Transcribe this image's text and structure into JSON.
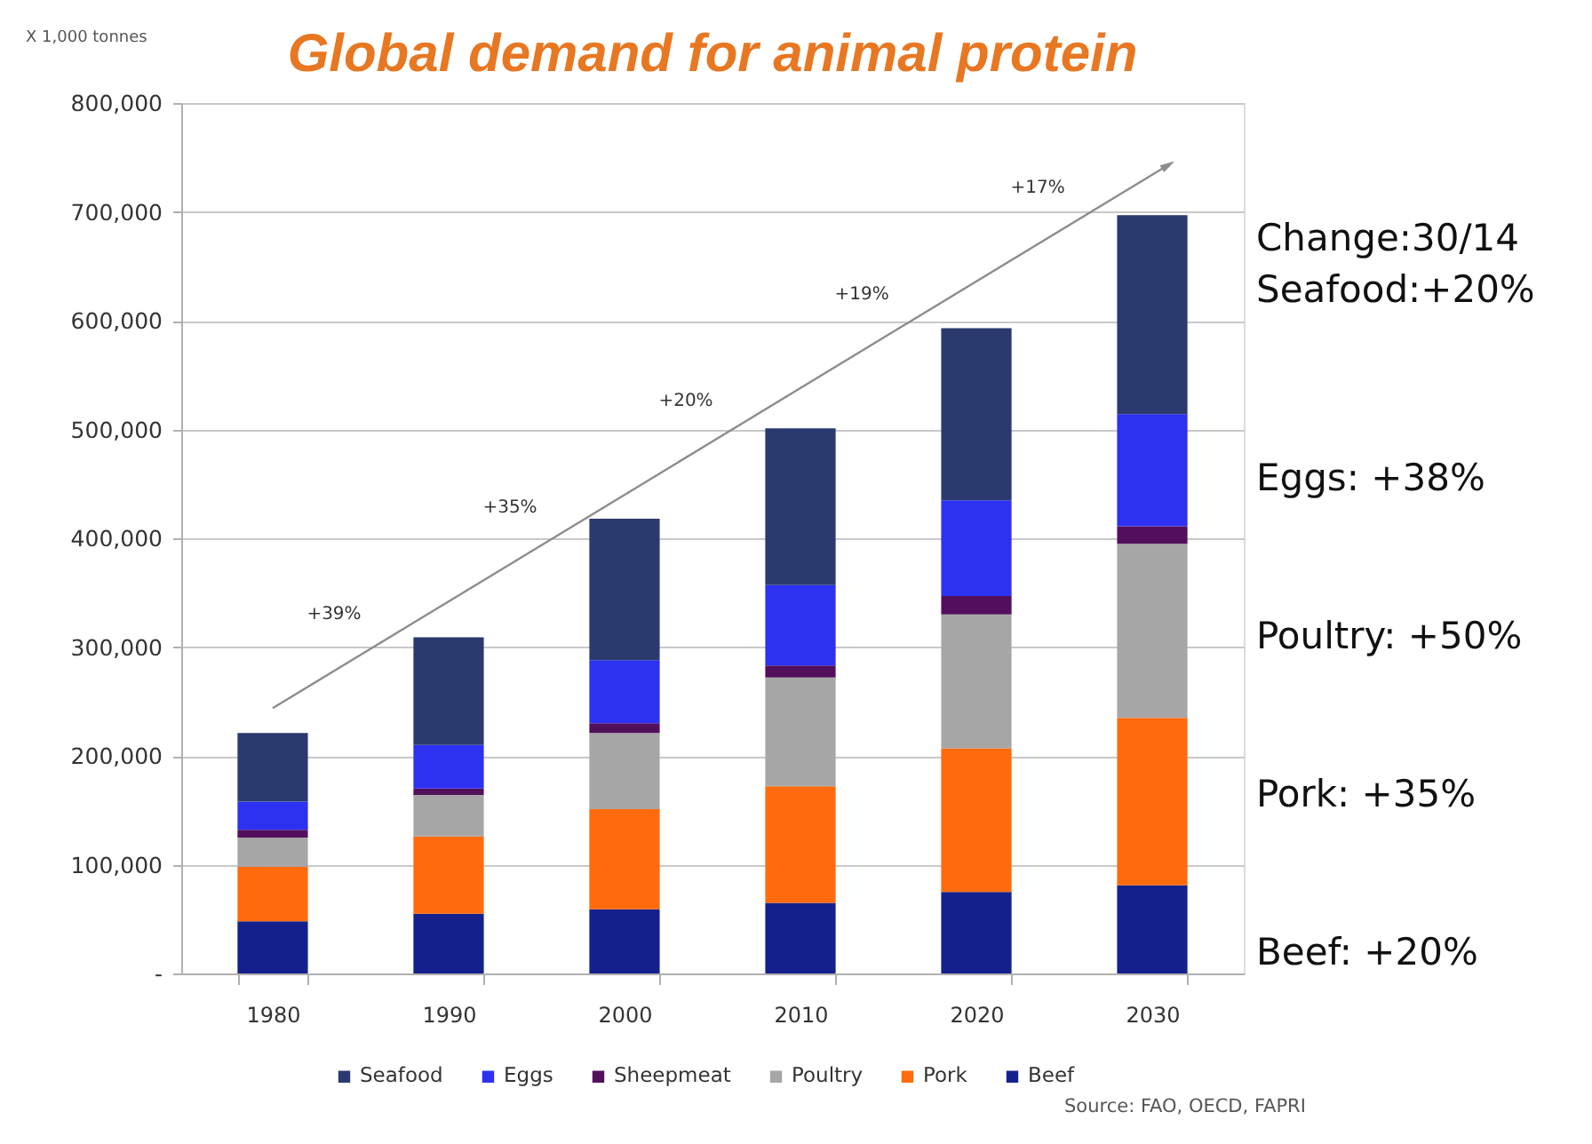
{
  "chart_data": {
    "type": "bar",
    "title": "Global demand for animal protein",
    "ylabel": "X 1,000 tonnes",
    "categories": [
      "1980",
      "1990",
      "2000",
      "2010",
      "2020",
      "2030"
    ],
    "stacked": true,
    "series": [
      {
        "name": "Beef",
        "color": "#14218c",
        "values": [
          48000,
          55000,
          59000,
          65000,
          75000,
          81000
        ]
      },
      {
        "name": "Pork",
        "color": "#ff6a0d",
        "values": [
          50000,
          71000,
          92000,
          107000,
          132000,
          154000
        ]
      },
      {
        "name": "Poultry",
        "color": "#a6a6a6",
        "values": [
          27000,
          38000,
          70000,
          100000,
          123000,
          160000
        ]
      },
      {
        "name": "Sheepmeat",
        "color": "#52105c",
        "values": [
          7000,
          6000,
          9000,
          11000,
          17000,
          16000
        ]
      },
      {
        "name": "Eggs",
        "color": "#2d31f2",
        "values": [
          26000,
          40000,
          58000,
          74000,
          88000,
          103000
        ]
      },
      {
        "name": "Seafood",
        "color": "#2b3a6e",
        "values": [
          63000,
          99000,
          130000,
          144000,
          158000,
          183000
        ]
      }
    ],
    "ylim": [
      0,
      800000
    ],
    "yticks": [
      {
        "value": 0,
        "label": "-"
      },
      {
        "value": 100000,
        "label": "100,000"
      },
      {
        "value": 200000,
        "label": "200,000"
      },
      {
        "value": 300000,
        "label": "300,000"
      },
      {
        "value": 400000,
        "label": "400,000"
      },
      {
        "value": 500000,
        "label": "500,000"
      },
      {
        "value": 600000,
        "label": "600,000"
      },
      {
        "value": 700000,
        "label": "700,000"
      },
      {
        "value": 800000,
        "label": "800,000"
      }
    ],
    "grid": "y",
    "legend": "bottom",
    "annotations": [
      "+39%",
      "+35%",
      "+20%",
      "+19%",
      "+17%",
      "Change:30/14",
      "Seafood:+20%",
      "Eggs: +38%",
      "Poultry: +50%",
      "Pork: +35%",
      "Beef: +20%",
      "Source: FAO, OECD, FAPRI"
    ]
  }
}
